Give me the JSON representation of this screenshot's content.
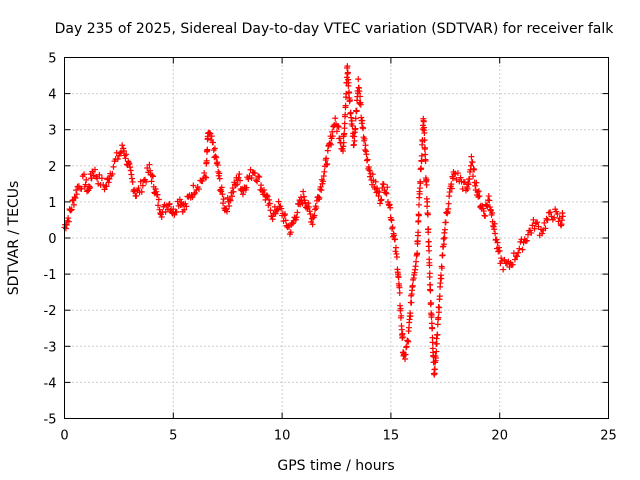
{
  "chart_data": {
    "type": "scatter",
    "title": "Day 235 of 2025, Sidereal Day-to-day VTEC variation (SDTVAR) for receiver falk",
    "xlabel": "GPS time / hours",
    "ylabel": "SDTVAR / TECUs",
    "xlim": [
      0,
      25
    ],
    "ylim": [
      -5,
      5
    ],
    "xticks": [
      0,
      5,
      10,
      15,
      20,
      25
    ],
    "yticks": [
      -5,
      -4,
      -3,
      -2,
      -1,
      0,
      1,
      2,
      3,
      4,
      5
    ],
    "grid": true,
    "marker": "+",
    "series_color": "#ff0000",
    "series": [
      {
        "name": "SDTVAR",
        "trace": [
          [
            0.0,
            0.3
          ],
          [
            0.2,
            0.6
          ],
          [
            0.4,
            1.0
          ],
          [
            0.6,
            1.4
          ],
          [
            0.9,
            1.6
          ],
          [
            1.1,
            1.3
          ],
          [
            1.3,
            1.9
          ],
          [
            1.6,
            1.6
          ],
          [
            1.9,
            1.4
          ],
          [
            2.1,
            1.8
          ],
          [
            2.4,
            2.2
          ],
          [
            2.7,
            2.5
          ],
          [
            2.9,
            2.1
          ],
          [
            3.1,
            1.6
          ],
          [
            3.3,
            1.2
          ],
          [
            3.6,
            1.5
          ],
          [
            3.9,
            1.9
          ],
          [
            4.1,
            1.5
          ],
          [
            4.3,
            1.0
          ],
          [
            4.5,
            0.7
          ],
          [
            4.8,
            1.0
          ],
          [
            5.0,
            0.7
          ],
          [
            5.3,
            1.1
          ],
          [
            5.5,
            0.8
          ],
          [
            5.8,
            1.2
          ],
          [
            6.0,
            1.4
          ],
          [
            6.3,
            1.6
          ],
          [
            6.5,
            1.7
          ],
          [
            6.6,
            2.9
          ],
          [
            6.8,
            2.6
          ],
          [
            7.0,
            2.1
          ],
          [
            7.2,
            1.3
          ],
          [
            7.4,
            0.8
          ],
          [
            7.6,
            1.1
          ],
          [
            7.8,
            1.4
          ],
          [
            8.0,
            1.7
          ],
          [
            8.2,
            1.3
          ],
          [
            8.4,
            1.6
          ],
          [
            8.7,
            1.9
          ],
          [
            9.0,
            1.5
          ],
          [
            9.2,
            1.2
          ],
          [
            9.4,
            0.9
          ],
          [
            9.6,
            0.6
          ],
          [
            9.8,
            0.9
          ],
          [
            10.0,
            0.7
          ],
          [
            10.2,
            0.4
          ],
          [
            10.4,
            0.2
          ],
          [
            10.6,
            0.6
          ],
          [
            10.8,
            0.9
          ],
          [
            11.0,
            1.2
          ],
          [
            11.2,
            0.8
          ],
          [
            11.4,
            0.5
          ],
          [
            11.6,
            1.0
          ],
          [
            11.8,
            1.5
          ],
          [
            12.0,
            2.0
          ],
          [
            12.2,
            2.6
          ],
          [
            12.4,
            3.2
          ],
          [
            12.6,
            3.0
          ],
          [
            12.8,
            2.4
          ],
          [
            13.0,
            4.7
          ],
          [
            13.1,
            3.8
          ],
          [
            13.3,
            2.6
          ],
          [
            13.5,
            4.3
          ],
          [
            13.7,
            3.0
          ],
          [
            13.9,
            2.2
          ],
          [
            14.1,
            1.7
          ],
          [
            14.3,
            1.4
          ],
          [
            14.5,
            1.1
          ],
          [
            14.7,
            1.5
          ],
          [
            14.9,
            1.1
          ],
          [
            15.1,
            0.2
          ],
          [
            15.3,
            -0.7
          ],
          [
            15.5,
            -2.5
          ],
          [
            15.6,
            -3.4
          ],
          [
            15.8,
            -2.8
          ],
          [
            16.0,
            -1.2
          ],
          [
            16.2,
            -0.4
          ],
          [
            16.3,
            1.0
          ],
          [
            16.5,
            3.3
          ],
          [
            16.7,
            0.5
          ],
          [
            16.8,
            -1.3
          ],
          [
            16.9,
            -2.6
          ],
          [
            17.0,
            -3.8
          ],
          [
            17.1,
            -2.9
          ],
          [
            17.3,
            -1.1
          ],
          [
            17.5,
            0.4
          ],
          [
            17.7,
            1.2
          ],
          [
            17.9,
            1.8
          ],
          [
            18.2,
            1.6
          ],
          [
            18.5,
            1.3
          ],
          [
            18.7,
            2.1
          ],
          [
            18.9,
            1.5
          ],
          [
            19.1,
            1.0
          ],
          [
            19.3,
            0.7
          ],
          [
            19.5,
            1.1
          ],
          [
            19.7,
            0.5
          ],
          [
            19.9,
            -0.3
          ],
          [
            20.1,
            -0.7
          ],
          [
            20.4,
            -0.8
          ],
          [
            20.7,
            -0.5
          ],
          [
            21.0,
            -0.2
          ],
          [
            21.3,
            0.1
          ],
          [
            21.6,
            0.4
          ],
          [
            21.9,
            0.2
          ],
          [
            22.2,
            0.5
          ],
          [
            22.5,
            0.7
          ],
          [
            22.8,
            0.4
          ],
          [
            22.9,
            0.6
          ]
        ]
      }
    ]
  }
}
